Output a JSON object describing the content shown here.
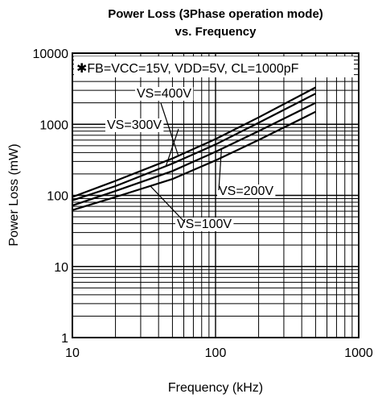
{
  "chart_data": {
    "type": "line",
    "title_line1": "Power Loss (3Phase operation mode)",
    "title_line2": "vs. Frequency",
    "xlabel": "Frequency (kHz)",
    "ylabel": "Power Loss (mW)",
    "x_scale": "log",
    "y_scale": "log",
    "xlim": [
      10,
      1000
    ],
    "ylim": [
      1,
      10000
    ],
    "x_ticks": [
      "10",
      "100",
      "1000"
    ],
    "y_ticks": [
      "1",
      "10",
      "100",
      "1000",
      "10000"
    ],
    "grid": true,
    "annotation": "✱FB=VCC=15V, VDD=5V, CL=1000pF",
    "series": [
      {
        "name": "VS=400V",
        "x": [
          10,
          20,
          50,
          100,
          200,
          500
        ],
        "y": [
          95,
          160,
          330,
          620,
          1250,
          3300
        ]
      },
      {
        "name": "VS=300V",
        "x": [
          10,
          20,
          50,
          100,
          200,
          500
        ],
        "y": [
          85,
          135,
          280,
          520,
          1050,
          2700
        ]
      },
      {
        "name": "VS=200V",
        "x": [
          10,
          20,
          50,
          100,
          200,
          500
        ],
        "y": [
          72,
          115,
          220,
          410,
          800,
          2000
        ]
      },
      {
        "name": "VS=100V",
        "x": [
          10,
          20,
          50,
          100,
          200,
          500
        ],
        "y": [
          62,
          95,
          170,
          310,
          600,
          1500
        ]
      }
    ]
  }
}
